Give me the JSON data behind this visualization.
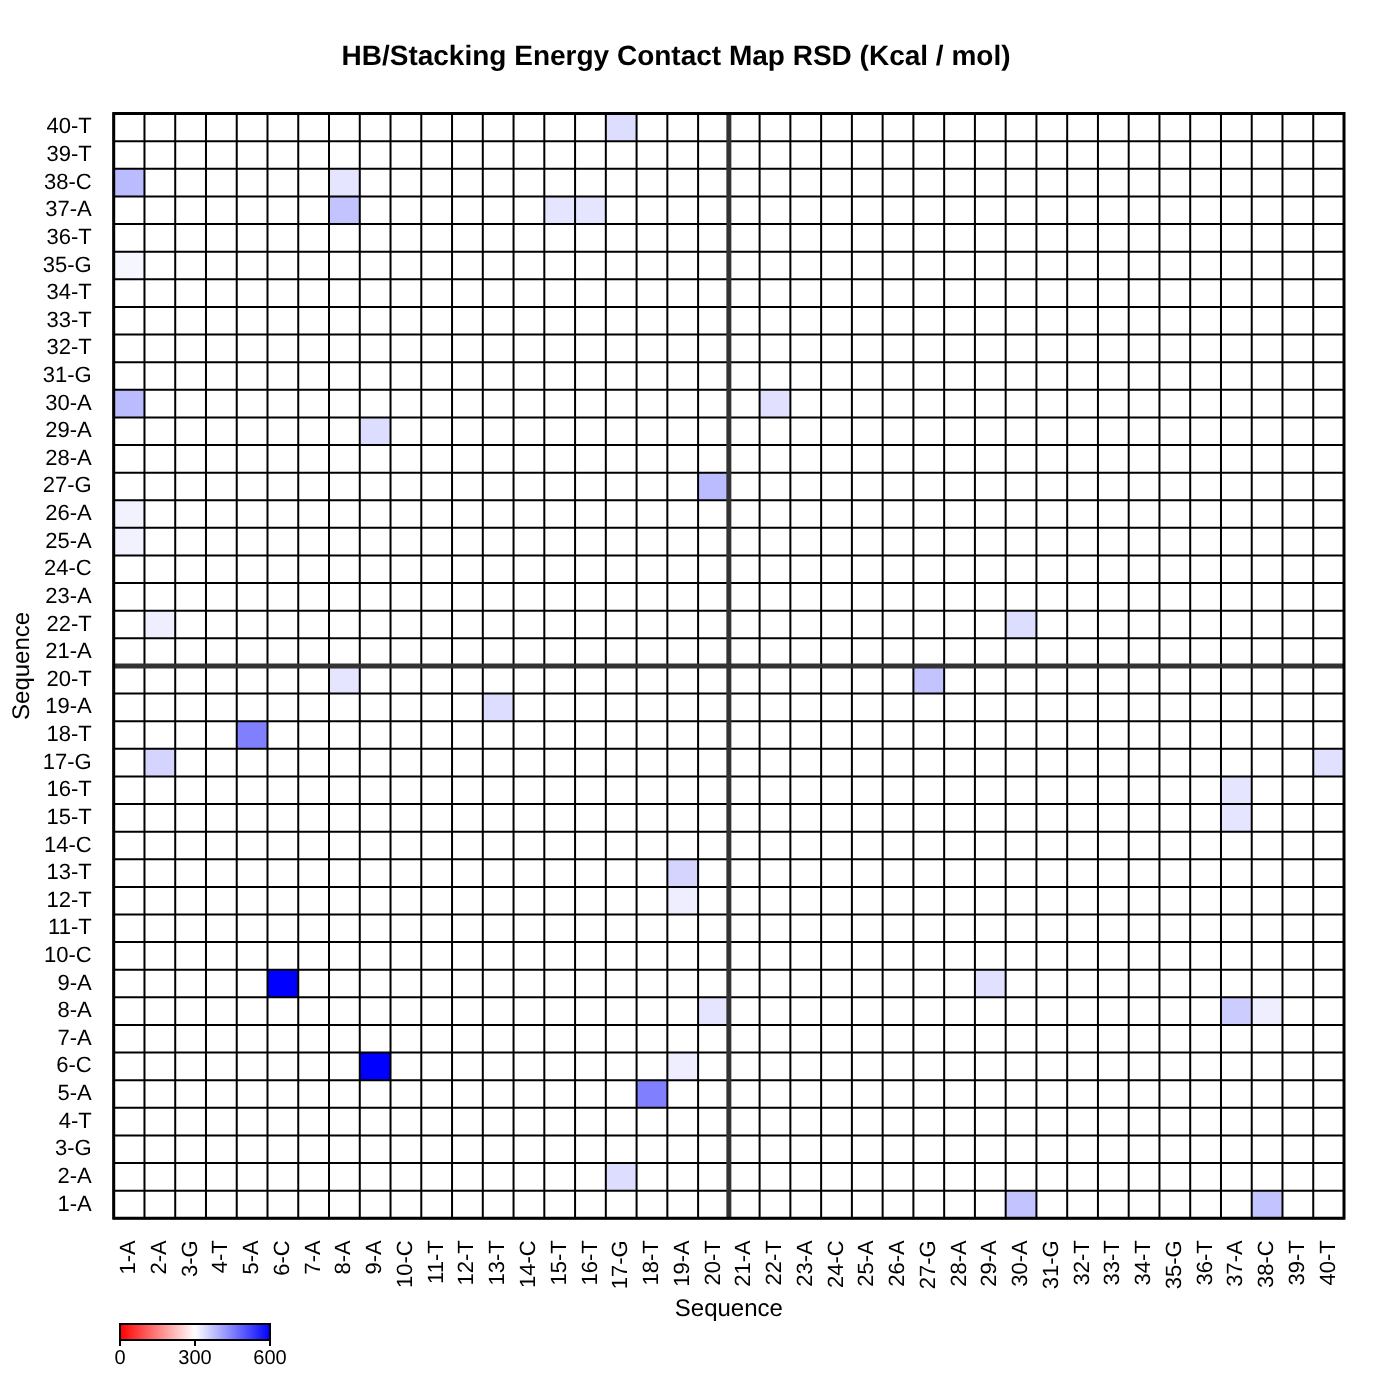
{
  "chart_data": {
    "type": "heatmap",
    "title": "HB/Stacking Energy Contact Map RSD (Kcal / mol)",
    "xlabel": "Sequence",
    "ylabel": "Sequence",
    "categories": [
      "1-A",
      "2-A",
      "3-G",
      "4-T",
      "5-A",
      "6-C",
      "7-A",
      "8-A",
      "9-A",
      "10-C",
      "11-T",
      "12-T",
      "13-T",
      "14-C",
      "15-T",
      "16-T",
      "17-G",
      "18-T",
      "19-A",
      "20-T",
      "21-A",
      "22-T",
      "23-A",
      "24-C",
      "25-A",
      "26-A",
      "27-G",
      "28-A",
      "29-A",
      "30-A",
      "31-G",
      "32-T",
      "33-T",
      "34-T",
      "35-G",
      "36-T",
      "37-A",
      "38-C",
      "39-T",
      "40-T"
    ],
    "y_categories": [
      "40-T",
      "39-T",
      "38-C",
      "37-A",
      "36-T",
      "35-G",
      "34-T",
      "33-T",
      "32-T",
      "31-G",
      "30-A",
      "29-A",
      "28-A",
      "27-G",
      "26-A",
      "25-A",
      "24-C",
      "23-A",
      "22-T",
      "21-A",
      "20-T",
      "19-A",
      "18-T",
      "17-G",
      "16-T",
      "15-T",
      "14-C",
      "13-T",
      "12-T",
      "11-T",
      "10-C",
      "9-A",
      "8-A",
      "7-A",
      "6-C",
      "5-A",
      "4-T",
      "3-G",
      "2-A",
      "1-A"
    ],
    "cells": [
      [
        300,
        300,
        300,
        300,
        300,
        300,
        300,
        300,
        300,
        300,
        300,
        300,
        300,
        300,
        300,
        300,
        340,
        300,
        300,
        300,
        300,
        300,
        300,
        300,
        300,
        300,
        300,
        300,
        300,
        300,
        300,
        300,
        300,
        300,
        300,
        300,
        300,
        300,
        300,
        300
      ],
      [
        300,
        300,
        300,
        300,
        300,
        300,
        300,
        300,
        300,
        300,
        300,
        300,
        300,
        300,
        300,
        300,
        300,
        300,
        300,
        300,
        300,
        300,
        300,
        300,
        300,
        300,
        300,
        300,
        300,
        300,
        300,
        300,
        300,
        300,
        300,
        300,
        300,
        300,
        300,
        300
      ],
      [
        380,
        300,
        300,
        300,
        300,
        300,
        300,
        330,
        300,
        300,
        300,
        300,
        300,
        300,
        300,
        300,
        300,
        300,
        300,
        300,
        300,
        300,
        300,
        300,
        300,
        300,
        300,
        300,
        300,
        300,
        300,
        300,
        300,
        300,
        300,
        300,
        300,
        300,
        300,
        300
      ],
      [
        300,
        300,
        300,
        300,
        300,
        300,
        300,
        370,
        300,
        300,
        300,
        300,
        300,
        300,
        330,
        330,
        300,
        300,
        300,
        300,
        300,
        300,
        300,
        300,
        300,
        300,
        300,
        300,
        300,
        300,
        300,
        300,
        300,
        300,
        300,
        300,
        300,
        300,
        300,
        300
      ],
      [
        300,
        300,
        300,
        300,
        300,
        300,
        300,
        300,
        300,
        300,
        300,
        300,
        300,
        300,
        300,
        300,
        300,
        300,
        300,
        300,
        300,
        300,
        300,
        300,
        300,
        300,
        300,
        300,
        300,
        300,
        300,
        300,
        300,
        300,
        300,
        300,
        300,
        300,
        300,
        300
      ],
      [
        310,
        300,
        300,
        300,
        300,
        300,
        300,
        300,
        300,
        300,
        300,
        300,
        300,
        300,
        300,
        300,
        300,
        300,
        300,
        300,
        300,
        300,
        300,
        300,
        300,
        300,
        300,
        300,
        300,
        300,
        300,
        300,
        300,
        300,
        300,
        300,
        300,
        300,
        300,
        300
      ],
      [
        300,
        300,
        300,
        300,
        300,
        300,
        300,
        300,
        300,
        300,
        300,
        300,
        300,
        300,
        300,
        300,
        300,
        300,
        300,
        300,
        300,
        300,
        300,
        300,
        300,
        300,
        300,
        300,
        300,
        300,
        300,
        300,
        300,
        300,
        300,
        300,
        300,
        300,
        300,
        300
      ],
      [
        300,
        300,
        300,
        300,
        300,
        300,
        300,
        300,
        300,
        300,
        300,
        300,
        300,
        300,
        300,
        300,
        300,
        300,
        300,
        300,
        300,
        300,
        300,
        300,
        300,
        300,
        300,
        300,
        300,
        300,
        300,
        300,
        300,
        300,
        300,
        300,
        300,
        300,
        300,
        300
      ],
      [
        300,
        300,
        300,
        300,
        300,
        300,
        300,
        300,
        300,
        300,
        300,
        300,
        300,
        300,
        300,
        300,
        300,
        300,
        300,
        300,
        300,
        300,
        300,
        300,
        300,
        300,
        300,
        300,
        300,
        300,
        300,
        300,
        300,
        300,
        300,
        300,
        300,
        300,
        300,
        300
      ],
      [
        300,
        300,
        300,
        300,
        300,
        300,
        300,
        300,
        300,
        300,
        300,
        300,
        300,
        300,
        300,
        300,
        300,
        300,
        300,
        300,
        300,
        300,
        300,
        300,
        300,
        300,
        300,
        300,
        300,
        300,
        300,
        300,
        300,
        300,
        300,
        300,
        300,
        300,
        300,
        300
      ],
      [
        380,
        300,
        300,
        300,
        300,
        300,
        300,
        300,
        300,
        300,
        300,
        300,
        300,
        300,
        300,
        300,
        300,
        300,
        300,
        300,
        300,
        335,
        300,
        300,
        300,
        300,
        300,
        300,
        300,
        300,
        300,
        300,
        300,
        300,
        300,
        300,
        300,
        300,
        300,
        300
      ],
      [
        300,
        300,
        300,
        300,
        300,
        300,
        300,
        300,
        340,
        300,
        300,
        300,
        300,
        300,
        300,
        300,
        300,
        300,
        300,
        300,
        300,
        300,
        300,
        300,
        300,
        300,
        300,
        300,
        300,
        300,
        300,
        300,
        300,
        300,
        300,
        300,
        300,
        300,
        300,
        300
      ],
      [
        300,
        300,
        300,
        300,
        300,
        300,
        300,
        300,
        300,
        300,
        300,
        300,
        300,
        300,
        300,
        300,
        300,
        300,
        300,
        300,
        300,
        300,
        300,
        300,
        300,
        300,
        300,
        300,
        300,
        300,
        300,
        300,
        300,
        300,
        300,
        300,
        300,
        300,
        300,
        300
      ],
      [
        300,
        300,
        300,
        300,
        300,
        300,
        300,
        300,
        300,
        300,
        300,
        300,
        300,
        300,
        300,
        300,
        300,
        300,
        300,
        380,
        300,
        300,
        300,
        300,
        300,
        300,
        300,
        300,
        300,
        300,
        300,
        300,
        300,
        300,
        300,
        300,
        300,
        300,
        300,
        300
      ],
      [
        315,
        300,
        300,
        300,
        300,
        300,
        300,
        300,
        300,
        300,
        300,
        300,
        300,
        300,
        300,
        300,
        300,
        300,
        300,
        300,
        300,
        300,
        300,
        300,
        300,
        300,
        300,
        300,
        300,
        300,
        300,
        300,
        300,
        300,
        300,
        300,
        300,
        300,
        300,
        300
      ],
      [
        315,
        300,
        300,
        300,
        300,
        300,
        300,
        300,
        300,
        300,
        300,
        300,
        300,
        300,
        300,
        300,
        300,
        300,
        300,
        300,
        300,
        300,
        300,
        300,
        300,
        300,
        300,
        300,
        300,
        300,
        300,
        300,
        300,
        300,
        300,
        300,
        300,
        300,
        300,
        300
      ],
      [
        300,
        300,
        300,
        300,
        300,
        300,
        300,
        300,
        300,
        300,
        300,
        300,
        300,
        300,
        300,
        300,
        300,
        300,
        300,
        300,
        300,
        300,
        300,
        300,
        300,
        300,
        300,
        300,
        300,
        300,
        300,
        300,
        300,
        300,
        300,
        300,
        300,
        300,
        300,
        300
      ],
      [
        300,
        300,
        300,
        300,
        300,
        300,
        300,
        300,
        300,
        300,
        300,
        300,
        300,
        300,
        300,
        300,
        300,
        300,
        300,
        300,
        300,
        300,
        300,
        300,
        300,
        300,
        300,
        300,
        300,
        300,
        300,
        300,
        300,
        300,
        300,
        300,
        300,
        300,
        300,
        300
      ],
      [
        300,
        320,
        300,
        300,
        300,
        300,
        300,
        300,
        300,
        300,
        300,
        300,
        300,
        300,
        300,
        300,
        300,
        300,
        300,
        300,
        300,
        300,
        300,
        300,
        300,
        300,
        300,
        300,
        300,
        340,
        300,
        300,
        300,
        300,
        300,
        300,
        300,
        300,
        300,
        300
      ],
      [
        300,
        300,
        300,
        300,
        300,
        300,
        300,
        300,
        300,
        300,
        300,
        300,
        300,
        300,
        300,
        300,
        300,
        300,
        300,
        300,
        300,
        300,
        300,
        300,
        300,
        300,
        300,
        300,
        300,
        300,
        300,
        300,
        300,
        300,
        300,
        300,
        300,
        300,
        300,
        300
      ],
      [
        300,
        300,
        300,
        300,
        300,
        300,
        300,
        330,
        300,
        300,
        300,
        300,
        300,
        300,
        300,
        300,
        300,
        300,
        300,
        300,
        300,
        300,
        300,
        300,
        300,
        300,
        370,
        300,
        300,
        300,
        300,
        300,
        300,
        300,
        300,
        300,
        300,
        300,
        300,
        300
      ],
      [
        300,
        300,
        300,
        300,
        300,
        300,
        300,
        300,
        300,
        300,
        300,
        300,
        340,
        300,
        300,
        300,
        300,
        300,
        300,
        300,
        300,
        300,
        300,
        300,
        300,
        300,
        300,
        300,
        300,
        300,
        300,
        300,
        300,
        300,
        300,
        300,
        300,
        300,
        300,
        300
      ],
      [
        300,
        300,
        300,
        300,
        450,
        300,
        300,
        300,
        300,
        300,
        300,
        300,
        300,
        300,
        300,
        300,
        300,
        300,
        300,
        300,
        300,
        300,
        300,
        300,
        300,
        300,
        300,
        300,
        300,
        300,
        300,
        300,
        300,
        300,
        300,
        300,
        300,
        300,
        300,
        300
      ],
      [
        300,
        350,
        300,
        300,
        300,
        300,
        300,
        300,
        300,
        300,
        300,
        300,
        300,
        300,
        300,
        300,
        300,
        300,
        300,
        300,
        300,
        300,
        300,
        300,
        300,
        300,
        300,
        300,
        300,
        300,
        300,
        300,
        300,
        300,
        300,
        300,
        300,
        300,
        300,
        335
      ],
      [
        300,
        300,
        300,
        300,
        300,
        300,
        300,
        300,
        300,
        300,
        300,
        300,
        300,
        300,
        300,
        300,
        300,
        300,
        300,
        300,
        300,
        300,
        300,
        300,
        300,
        300,
        300,
        300,
        300,
        300,
        300,
        300,
        300,
        300,
        300,
        300,
        330,
        300,
        300,
        300
      ],
      [
        300,
        300,
        300,
        300,
        300,
        300,
        300,
        300,
        300,
        300,
        300,
        300,
        300,
        300,
        300,
        300,
        300,
        300,
        300,
        300,
        300,
        300,
        300,
        300,
        300,
        300,
        300,
        300,
        300,
        300,
        300,
        300,
        300,
        300,
        300,
        300,
        330,
        300,
        300,
        300
      ],
      [
        300,
        300,
        300,
        300,
        300,
        300,
        300,
        300,
        300,
        300,
        300,
        300,
        300,
        300,
        300,
        300,
        300,
        300,
        300,
        300,
        300,
        300,
        300,
        300,
        300,
        300,
        300,
        300,
        300,
        300,
        300,
        300,
        300,
        300,
        300,
        300,
        300,
        300,
        300,
        300
      ],
      [
        300,
        300,
        300,
        300,
        300,
        300,
        300,
        300,
        300,
        300,
        300,
        300,
        300,
        300,
        300,
        300,
        300,
        300,
        350,
        300,
        300,
        300,
        300,
        300,
        300,
        300,
        300,
        300,
        300,
        300,
        300,
        300,
        300,
        300,
        300,
        300,
        300,
        300,
        300,
        300
      ],
      [
        300,
        300,
        300,
        300,
        300,
        300,
        300,
        300,
        300,
        300,
        300,
        300,
        300,
        300,
        300,
        300,
        300,
        300,
        320,
        300,
        300,
        300,
        300,
        300,
        300,
        300,
        300,
        300,
        300,
        300,
        300,
        300,
        300,
        300,
        300,
        300,
        300,
        300,
        300,
        300
      ],
      [
        300,
        300,
        300,
        300,
        300,
        300,
        300,
        300,
        300,
        300,
        300,
        300,
        300,
        300,
        300,
        300,
        300,
        300,
        300,
        300,
        300,
        300,
        300,
        300,
        300,
        300,
        300,
        300,
        300,
        300,
        300,
        300,
        300,
        300,
        300,
        300,
        300,
        300,
        300,
        300
      ],
      [
        300,
        300,
        300,
        300,
        300,
        300,
        300,
        300,
        300,
        300,
        300,
        300,
        300,
        300,
        300,
        300,
        300,
        300,
        300,
        300,
        300,
        300,
        300,
        300,
        300,
        300,
        300,
        300,
        300,
        300,
        300,
        300,
        300,
        300,
        300,
        300,
        300,
        300,
        300,
        300
      ],
      [
        300,
        300,
        300,
        300,
        300,
        600,
        300,
        300,
        300,
        300,
        300,
        300,
        300,
        300,
        300,
        300,
        300,
        300,
        300,
        300,
        300,
        300,
        300,
        300,
        300,
        300,
        300,
        300,
        335,
        300,
        300,
        300,
        300,
        300,
        300,
        300,
        300,
        300,
        300,
        300
      ],
      [
        300,
        300,
        300,
        300,
        300,
        300,
        300,
        300,
        300,
        300,
        300,
        300,
        300,
        300,
        300,
        300,
        300,
        300,
        300,
        330,
        300,
        300,
        300,
        300,
        300,
        300,
        300,
        300,
        300,
        300,
        300,
        300,
        300,
        300,
        300,
        300,
        360,
        320,
        300,
        300
      ],
      [
        300,
        300,
        300,
        300,
        300,
        300,
        300,
        300,
        300,
        300,
        300,
        300,
        300,
        300,
        300,
        300,
        300,
        300,
        300,
        300,
        300,
        300,
        300,
        300,
        300,
        300,
        300,
        300,
        300,
        300,
        300,
        300,
        300,
        300,
        300,
        300,
        300,
        300,
        300,
        300
      ],
      [
        300,
        300,
        300,
        300,
        300,
        300,
        300,
        300,
        600,
        300,
        300,
        300,
        300,
        300,
        300,
        300,
        300,
        300,
        320,
        300,
        300,
        300,
        300,
        300,
        300,
        300,
        300,
        300,
        300,
        300,
        300,
        300,
        300,
        300,
        300,
        300,
        300,
        300,
        300,
        300
      ],
      [
        300,
        300,
        300,
        300,
        300,
        300,
        300,
        300,
        300,
        300,
        300,
        300,
        300,
        300,
        300,
        300,
        300,
        450,
        300,
        300,
        300,
        300,
        300,
        300,
        300,
        300,
        300,
        300,
        300,
        300,
        300,
        300,
        300,
        300,
        300,
        300,
        300,
        300,
        300,
        300
      ],
      [
        300,
        300,
        300,
        300,
        300,
        300,
        300,
        300,
        300,
        300,
        300,
        300,
        300,
        300,
        300,
        300,
        300,
        300,
        300,
        300,
        300,
        300,
        300,
        300,
        300,
        300,
        300,
        300,
        300,
        300,
        300,
        300,
        300,
        300,
        300,
        300,
        300,
        300,
        300,
        300
      ],
      [
        300,
        300,
        300,
        300,
        300,
        300,
        300,
        300,
        300,
        300,
        300,
        300,
        300,
        300,
        300,
        300,
        300,
        300,
        300,
        300,
        300,
        300,
        300,
        300,
        300,
        300,
        300,
        300,
        300,
        300,
        300,
        300,
        300,
        300,
        300,
        300,
        300,
        300,
        300,
        300
      ],
      [
        300,
        300,
        300,
        300,
        300,
        300,
        300,
        300,
        300,
        300,
        300,
        300,
        300,
        300,
        300,
        300,
        340,
        300,
        300,
        300,
        300,
        300,
        300,
        300,
        300,
        300,
        300,
        300,
        300,
        300,
        300,
        300,
        300,
        300,
        300,
        300,
        300,
        300,
        300,
        300
      ],
      [
        300,
        300,
        300,
        300,
        300,
        300,
        300,
        300,
        300,
        300,
        300,
        300,
        300,
        300,
        300,
        300,
        300,
        300,
        300,
        300,
        300,
        300,
        300,
        300,
        300,
        300,
        300,
        300,
        300,
        370,
        300,
        300,
        300,
        300,
        300,
        300,
        300,
        370,
        300,
        300
      ]
    ],
    "clim": [
      0,
      600
    ],
    "cticks": [
      0,
      300,
      600
    ],
    "grid": true
  }
}
